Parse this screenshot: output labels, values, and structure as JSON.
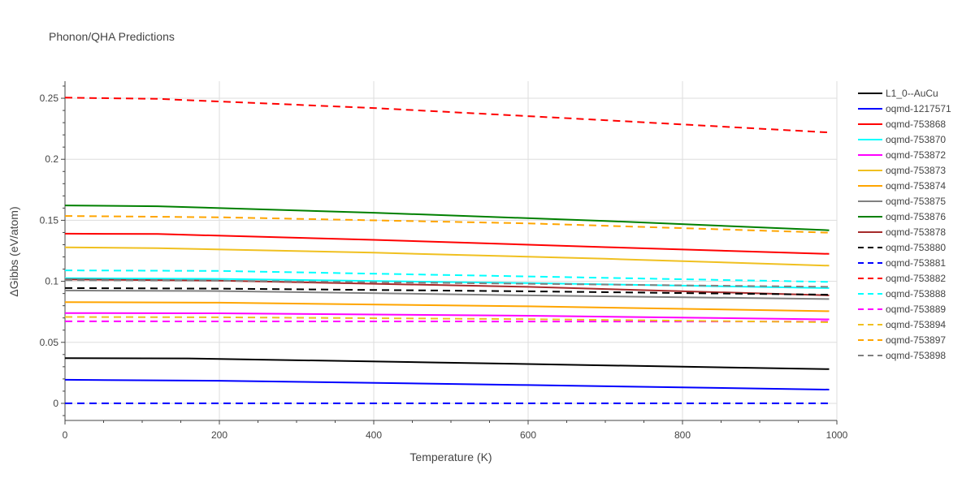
{
  "chart_data": {
    "type": "line",
    "title": "Phonon/QHA Predictions",
    "xlabel": "Temperature (K)",
    "ylabel": "ΔGibbs (eV/atom)",
    "xlim": [
      0,
      1000
    ],
    "ylim": [
      -0.014,
      0.264
    ],
    "x_ticks": [
      0,
      200,
      400,
      600,
      800,
      1000
    ],
    "y_ticks": [
      0,
      0.05,
      0.1,
      0.15,
      0.2,
      0.25
    ],
    "y_tick_labels": [
      "0",
      "0.05",
      "0.1",
      "0.15",
      "0.2",
      "0.25"
    ],
    "grid": true,
    "legend_position": "right",
    "series": [
      {
        "name": "L1_0--AuCu",
        "color": "#000000",
        "dash": "solid",
        "x": [
          0,
          160,
          480,
          990
        ],
        "y": [
          0.037,
          0.0368,
          0.0335,
          0.028
        ]
      },
      {
        "name": "oqmd-1217571",
        "color": "#0000ff",
        "dash": "solid",
        "x": [
          0,
          200,
          600,
          990
        ],
        "y": [
          0.0193,
          0.0185,
          0.015,
          0.0113
        ]
      },
      {
        "name": "oqmd-753868",
        "color": "#ff0000",
        "dash": "solid",
        "x": [
          0,
          120,
          400,
          700,
          990
        ],
        "y": [
          0.139,
          0.1388,
          0.134,
          0.128,
          0.1225
        ]
      },
      {
        "name": "oqmd-753870",
        "color": "#00ffff",
        "dash": "solid",
        "x": [
          0,
          200,
          600,
          990
        ],
        "y": [
          0.1025,
          0.102,
          0.0985,
          0.0945
        ]
      },
      {
        "name": "oqmd-753872",
        "color": "#ff00ff",
        "dash": "solid",
        "x": [
          0,
          200,
          600,
          990
        ],
        "y": [
          0.074,
          0.0738,
          0.0718,
          0.0688
        ]
      },
      {
        "name": "oqmd-753873",
        "color": "#f0c020",
        "dash": "solid",
        "x": [
          0,
          120,
          400,
          700,
          990
        ],
        "y": [
          0.1278,
          0.1272,
          0.1235,
          0.1185,
          0.1128
        ]
      },
      {
        "name": "oqmd-753874",
        "color": "#ffa500",
        "dash": "solid",
        "x": [
          0,
          200,
          600,
          990
        ],
        "y": [
          0.083,
          0.0825,
          0.0795,
          0.0755
        ]
      },
      {
        "name": "oqmd-753875",
        "color": "#808080",
        "dash": "solid",
        "x": [
          0,
          200,
          600,
          990
        ],
        "y": [
          0.0925,
          0.092,
          0.0885,
          0.0855
        ]
      },
      {
        "name": "oqmd-753876",
        "color": "#008000",
        "dash": "solid",
        "x": [
          0,
          120,
          400,
          700,
          990
        ],
        "y": [
          0.1622,
          0.1615,
          0.1562,
          0.1495,
          0.1418
        ]
      },
      {
        "name": "oqmd-753878",
        "color": "#a52a2a",
        "dash": "solid",
        "x": [
          0,
          200,
          600,
          990
        ],
        "y": [
          0.1015,
          0.1005,
          0.0955,
          0.0885
        ]
      },
      {
        "name": "oqmd-753880",
        "color": "#000000",
        "dash": "dash",
        "x": [
          0,
          200,
          600,
          990
        ],
        "y": [
          0.0945,
          0.094,
          0.0918,
          0.089
        ]
      },
      {
        "name": "oqmd-753881",
        "color": "#0000ff",
        "dash": "dash",
        "x": [
          0,
          990
        ],
        "y": [
          0,
          0
        ]
      },
      {
        "name": "oqmd-753882",
        "color": "#ff0000",
        "dash": "dash",
        "x": [
          0,
          120,
          400,
          700,
          990
        ],
        "y": [
          0.2505,
          0.2495,
          0.242,
          0.232,
          0.222
        ]
      },
      {
        "name": "oqmd-753888",
        "color": "#00ffff",
        "dash": "dash",
        "x": [
          0,
          200,
          600,
          990
        ],
        "y": [
          0.109,
          0.1085,
          0.104,
          0.0995
        ]
      },
      {
        "name": "oqmd-753889",
        "color": "#ff00ff",
        "dash": "dash",
        "x": [
          0,
          990
        ],
        "y": [
          0.0672,
          0.067
        ]
      },
      {
        "name": "oqmd-753894",
        "color": "#f0c020",
        "dash": "dash",
        "x": [
          0,
          200,
          600,
          990
        ],
        "y": [
          0.0708,
          0.0705,
          0.069,
          0.0665
        ]
      },
      {
        "name": "oqmd-753897",
        "color": "#ffa500",
        "dash": "dash",
        "x": [
          0,
          200,
          600,
          990
        ],
        "y": [
          0.1535,
          0.1525,
          0.1475,
          0.1398
        ]
      },
      {
        "name": "oqmd-753898",
        "color": "#808080",
        "dash": "dash",
        "x": [
          0,
          200,
          600,
          990
        ],
        "y": [
          0.101,
          0.1005,
          0.098,
          0.0955
        ]
      }
    ]
  }
}
